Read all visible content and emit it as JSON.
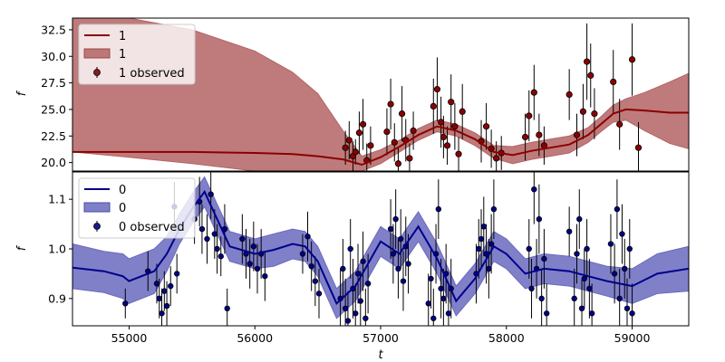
{
  "chart_data": [
    {
      "type": "line",
      "panel": "top",
      "ylabel": "f",
      "xlabel": "",
      "xlim": [
        54550,
        59450
      ],
      "ylim": [
        19.2,
        33.6
      ],
      "yticks": [
        20.0,
        22.5,
        25.0,
        27.5,
        30.0,
        32.5
      ],
      "ytick_labels": [
        "20.0",
        "22.5",
        "25.0",
        "27.5",
        "30.0",
        "32.5"
      ],
      "legend_position": "upper-left",
      "colors": {
        "line": "#8b0000",
        "band": "#b46464"
      },
      "series": [
        {
          "name": "1",
          "kind": "mean",
          "x": [
            54550,
            55000,
            55500,
            56000,
            56300,
            56500,
            56700,
            56850,
            57000,
            57150,
            57300,
            57450,
            57600,
            57750,
            57900,
            58050,
            58200,
            58350,
            58500,
            58650,
            58750,
            58850,
            58950,
            59100,
            59300,
            59450
          ],
          "y": [
            21.0,
            21.0,
            21.0,
            20.9,
            20.8,
            20.6,
            20.3,
            19.8,
            20.5,
            21.5,
            22.6,
            23.4,
            23.0,
            22.2,
            21.0,
            20.7,
            21.1,
            21.4,
            21.7,
            22.6,
            23.6,
            24.6,
            25.0,
            24.9,
            24.7,
            24.7
          ]
        },
        {
          "name": "1",
          "kind": "band",
          "lower": [
            21.0,
            20.5,
            19.9,
            19.2,
            19.2,
            19.2,
            19.2,
            19.2,
            19.9,
            21.0,
            22.1,
            22.9,
            22.5,
            21.6,
            20.4,
            19.9,
            20.3,
            20.6,
            20.9,
            21.9,
            22.9,
            23.8,
            24.0,
            23.0,
            21.8,
            21.3
          ],
          "upper": [
            33.6,
            33.6,
            32.5,
            30.5,
            28.5,
            26.5,
            23.0,
            20.6,
            21.2,
            22.1,
            23.2,
            24.0,
            23.6,
            22.8,
            21.6,
            21.5,
            21.9,
            22.2,
            22.5,
            23.3,
            24.3,
            25.4,
            26.0,
            26.6,
            27.6,
            28.4
          ]
        },
        {
          "name": "1 observed",
          "kind": "errorbar",
          "points": [
            [
              56720,
              21.4,
              1.6
            ],
            [
              56750,
              22.1,
              1.8
            ],
            [
              56780,
              20.6,
              1.4
            ],
            [
              56800,
              21.0,
              1.2
            ],
            [
              56830,
              22.8,
              2.0
            ],
            [
              56860,
              23.6,
              2.4
            ],
            [
              56890,
              20.2,
              1.6
            ],
            [
              56920,
              21.6,
              1.8
            ],
            [
              57050,
              22.9,
              2.2
            ],
            [
              57080,
              25.5,
              2.4
            ],
            [
              57110,
              21.9,
              1.8
            ],
            [
              57140,
              19.9,
              1.6
            ],
            [
              57170,
              24.6,
              2.6
            ],
            [
              57200,
              22.1,
              2.0
            ],
            [
              57230,
              20.4,
              1.4
            ],
            [
              57260,
              23.0,
              1.8
            ],
            [
              57420,
              25.3,
              2.6
            ],
            [
              57450,
              26.9,
              3.0
            ],
            [
              57480,
              23.8,
              2.4
            ],
            [
              57500,
              22.4,
              2.0
            ],
            [
              57530,
              21.6,
              1.8
            ],
            [
              57560,
              25.7,
              2.6
            ],
            [
              57590,
              23.4,
              2.2
            ],
            [
              57620,
              20.8,
              1.6
            ],
            [
              57650,
              24.8,
              2.6
            ],
            [
              57800,
              22.0,
              2.0
            ],
            [
              57840,
              23.4,
              2.2
            ],
            [
              57880,
              21.3,
              1.8
            ],
            [
              57920,
              20.4,
              1.6
            ],
            [
              57960,
              20.9,
              1.6
            ],
            [
              58150,
              22.4,
              2.2
            ],
            [
              58180,
              24.4,
              2.4
            ],
            [
              58220,
              26.6,
              2.6
            ],
            [
              58260,
              22.6,
              2.0
            ],
            [
              58300,
              21.6,
              1.8
            ],
            [
              58500,
              26.4,
              2.4
            ],
            [
              58560,
              22.6,
              2.0
            ],
            [
              58610,
              24.8,
              2.6
            ],
            [
              58640,
              29.5,
              3.6
            ],
            [
              58670,
              28.2,
              3.0
            ],
            [
              58700,
              24.6,
              2.4
            ],
            [
              58850,
              27.6,
              3.0
            ],
            [
              58900,
              23.6,
              2.4
            ],
            [
              59000,
              29.7,
              3.4
            ],
            [
              59050,
              21.4,
              2.4
            ]
          ]
        }
      ]
    },
    {
      "type": "line",
      "panel": "bottom",
      "ylabel": "f",
      "xlabel": "t",
      "xlim": [
        54550,
        59450
      ],
      "ylim": [
        0.845,
        1.155
      ],
      "xticks": [
        55000,
        56000,
        57000,
        58000,
        59000
      ],
      "xtick_labels": [
        "55000",
        "56000",
        "57000",
        "58000",
        "59000"
      ],
      "yticks": [
        0.9,
        1.0,
        1.1
      ],
      "ytick_labels": [
        "0.9",
        "1.0",
        "1.1"
      ],
      "legend_position": "upper-left",
      "colors": {
        "line": "#00008b",
        "band": "#6a6abf"
      },
      "series": [
        {
          "name": "0",
          "kind": "mean",
          "x": [
            54550,
            54800,
            54950,
            55000,
            55200,
            55300,
            55400,
            55500,
            55600,
            55700,
            55800,
            56000,
            56150,
            56300,
            56400,
            56500,
            56650,
            56800,
            57000,
            57150,
            57300,
            57450,
            57600,
            57750,
            57900,
            58000,
            58150,
            58300,
            58500,
            58650,
            58800,
            59000,
            59200,
            59450
          ],
          "y": [
            0.962,
            0.955,
            0.945,
            0.935,
            0.955,
            0.99,
            1.04,
            1.08,
            1.115,
            1.06,
            1.005,
            0.99,
            0.998,
            1.01,
            1.005,
            0.975,
            0.89,
            0.925,
            1.015,
            0.99,
            1.045,
            0.98,
            0.895,
            0.94,
            1.005,
            0.99,
            0.95,
            0.96,
            0.955,
            0.945,
            0.935,
            0.925,
            0.95,
            0.96
          ]
        },
        {
          "name": "0",
          "kind": "band",
          "lower": [
            0.92,
            0.912,
            0.9,
            0.89,
            0.91,
            0.955,
            1.01,
            1.05,
            1.085,
            1.03,
            0.975,
            0.96,
            0.965,
            0.98,
            0.975,
            0.945,
            0.86,
            0.895,
            0.985,
            0.96,
            1.015,
            0.95,
            0.865,
            0.91,
            0.975,
            0.96,
            0.92,
            0.93,
            0.925,
            0.915,
            0.905,
            0.89,
            0.91,
            0.915
          ],
          "upper": [
            1.01,
            0.995,
            0.99,
            0.98,
            1.0,
            1.025,
            1.07,
            1.11,
            1.145,
            1.09,
            1.035,
            1.02,
            1.03,
            1.04,
            1.035,
            1.005,
            0.92,
            0.955,
            1.045,
            1.02,
            1.075,
            1.01,
            0.925,
            0.97,
            1.035,
            1.02,
            0.98,
            0.99,
            0.985,
            0.975,
            0.965,
            0.96,
            0.99,
            1.005
          ]
        },
        {
          "name": "0 observed",
          "kind": "errorbar",
          "points": [
            [
              54970,
              0.89,
              0.03
            ],
            [
              55150,
              0.955,
              0.04
            ],
            [
              55220,
              0.93,
              0.04
            ],
            [
              55240,
              0.9,
              0.04
            ],
            [
              55260,
              0.87,
              0.05
            ],
            [
              55280,
              0.915,
              0.04
            ],
            [
              55300,
              0.885,
              0.05
            ],
            [
              55330,
              0.925,
              0.04
            ],
            [
              55360,
              1.085,
              0.05
            ],
            [
              55380,
              0.95,
              0.04
            ],
            [
              55520,
              1.06,
              0.05
            ],
            [
              55560,
              1.095,
              0.05
            ],
            [
              55580,
              1.04,
              0.05
            ],
            [
              55620,
              1.02,
              0.05
            ],
            [
              55650,
              1.11,
              0.05
            ],
            [
              55680,
              1.03,
              0.05
            ],
            [
              55700,
              1.0,
              0.05
            ],
            [
              55730,
              0.985,
              0.04
            ],
            [
              55760,
              1.04,
              0.05
            ],
            [
              55780,
              0.88,
              0.04
            ],
            [
              55900,
              1.02,
              0.05
            ],
            [
              55930,
              0.99,
              0.05
            ],
            [
              55960,
              0.97,
              0.05
            ],
            [
              55990,
              1.005,
              0.05
            ],
            [
              56020,
              0.96,
              0.05
            ],
            [
              56050,
              0.99,
              0.05
            ],
            [
              56080,
              0.945,
              0.05
            ],
            [
              56380,
              0.99,
              0.04
            ],
            [
              56420,
              1.025,
              0.05
            ],
            [
              56450,
              0.965,
              0.05
            ],
            [
              56480,
              0.935,
              0.05
            ],
            [
              56510,
              0.91,
              0.05
            ],
            [
              56680,
              0.9,
              0.06
            ],
            [
              56700,
              0.96,
              0.06
            ],
            [
              56720,
              0.88,
              0.06
            ],
            [
              56740,
              0.855,
              0.06
            ],
            [
              56760,
              1.0,
              0.06
            ],
            [
              56780,
              0.92,
              0.06
            ],
            [
              56800,
              0.87,
              0.06
            ],
            [
              56820,
              0.95,
              0.06
            ],
            [
              56840,
              0.895,
              0.06
            ],
            [
              56860,
              0.975,
              0.06
            ],
            [
              56880,
              0.86,
              0.06
            ],
            [
              56900,
              0.93,
              0.06
            ],
            [
              57080,
              1.04,
              0.06
            ],
            [
              57100,
              0.99,
              0.06
            ],
            [
              57120,
              1.06,
              0.06
            ],
            [
              57140,
              0.96,
              0.06
            ],
            [
              57160,
              1.02,
              0.06
            ],
            [
              57180,
              0.935,
              0.06
            ],
            [
              57200,
              1.005,
              0.06
            ],
            [
              57220,
              0.97,
              0.06
            ],
            [
              57380,
              0.89,
              0.06
            ],
            [
              57400,
              0.94,
              0.06
            ],
            [
              57420,
              0.86,
              0.06
            ],
            [
              57440,
              0.99,
              0.06
            ],
            [
              57460,
              1.08,
              0.06
            ],
            [
              57480,
              0.92,
              0.06
            ],
            [
              57500,
              0.9,
              0.06
            ],
            [
              57520,
              0.95,
              0.06
            ],
            [
              57540,
              0.87,
              0.06
            ],
            [
              57560,
              0.92,
              0.06
            ],
            [
              57760,
              0.95,
              0.06
            ],
            [
              57780,
              1.0,
              0.06
            ],
            [
              57800,
              1.02,
              0.06
            ],
            [
              57820,
              1.045,
              0.06
            ],
            [
              57840,
              0.99,
              0.06
            ],
            [
              57860,
              0.96,
              0.06
            ],
            [
              57880,
              1.01,
              0.06
            ],
            [
              57900,
              1.08,
              0.06
            ],
            [
              58180,
              1.0,
              0.06
            ],
            [
              58200,
              0.92,
              0.06
            ],
            [
              58220,
              1.12,
              0.07
            ],
            [
              58240,
              0.96,
              0.06
            ],
            [
              58260,
              1.06,
              0.07
            ],
            [
              58280,
              0.9,
              0.06
            ],
            [
              58300,
              0.98,
              0.06
            ],
            [
              58320,
              0.87,
              0.06
            ],
            [
              58500,
              1.035,
              0.05
            ],
            [
              58540,
              0.9,
              0.06
            ],
            [
              58560,
              0.99,
              0.06
            ],
            [
              58580,
              1.06,
              0.06
            ],
            [
              58600,
              0.88,
              0.06
            ],
            [
              58620,
              0.94,
              0.06
            ],
            [
              58640,
              1.0,
              0.06
            ],
            [
              58660,
              0.92,
              0.06
            ],
            [
              58680,
              0.87,
              0.06
            ],
            [
              58830,
              1.01,
              0.06
            ],
            [
              58860,
              0.95,
              0.06
            ],
            [
              58880,
              1.08,
              0.06
            ],
            [
              58900,
              0.9,
              0.06
            ],
            [
              58920,
              1.03,
              0.06
            ],
            [
              58940,
              0.96,
              0.06
            ],
            [
              58960,
              0.88,
              0.06
            ],
            [
              58980,
              1.0,
              0.06
            ],
            [
              59000,
              0.87,
              0.06
            ]
          ]
        }
      ]
    }
  ],
  "legends": {
    "top": {
      "line": "1",
      "band": "1",
      "observed": "1 observed"
    },
    "bottom": {
      "line": "0",
      "band": "0",
      "observed": "0 observed"
    }
  }
}
